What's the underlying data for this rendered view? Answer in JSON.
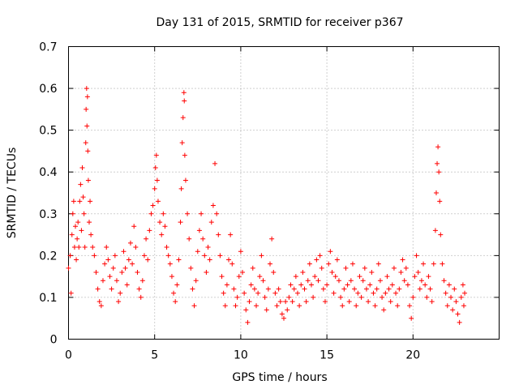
{
  "chart_data": {
    "type": "scatter",
    "title": "Day 131 of 2015, SRMTID for receiver p367",
    "xlabel": "GPS time / hours",
    "ylabel": "SRMTID / TECUs",
    "xlim": [
      0,
      25
    ],
    "ylim": [
      0,
      0.7
    ],
    "xticks": [
      0,
      5,
      10,
      15,
      20
    ],
    "yticks": [
      0,
      0.1,
      0.2,
      0.3,
      0.4,
      0.5,
      0.6,
      0.7
    ],
    "xtick_labels": [
      "0",
      "5",
      "10",
      "15",
      "20"
    ],
    "ytick_labels": [
      "0",
      "0.1",
      "0.2",
      "0.3",
      "0.4",
      "0.5",
      "0.6",
      "0.7"
    ],
    "grid": true,
    "marker": "+",
    "color": "#ff0000",
    "series": [
      {
        "name": "SRMTID",
        "points": [
          [
            0.0,
            0.17
          ],
          [
            0.1,
            0.2
          ],
          [
            0.15,
            0.11
          ],
          [
            0.2,
            0.25
          ],
          [
            0.25,
            0.3
          ],
          [
            0.3,
            0.33
          ],
          [
            0.35,
            0.22
          ],
          [
            0.4,
            0.27
          ],
          [
            0.45,
            0.19
          ],
          [
            0.5,
            0.24
          ],
          [
            0.55,
            0.28
          ],
          [
            0.6,
            0.22
          ],
          [
            0.65,
            0.33
          ],
          [
            0.7,
            0.37
          ],
          [
            0.75,
            0.26
          ],
          [
            0.8,
            0.41
          ],
          [
            0.85,
            0.34
          ],
          [
            0.9,
            0.3
          ],
          [
            0.95,
            0.22
          ],
          [
            1.0,
            0.47
          ],
          [
            1.02,
            0.55
          ],
          [
            1.05,
            0.6
          ],
          [
            1.07,
            0.51
          ],
          [
            1.1,
            0.58
          ],
          [
            1.12,
            0.45
          ],
          [
            1.15,
            0.38
          ],
          [
            1.2,
            0.28
          ],
          [
            1.25,
            0.33
          ],
          [
            1.3,
            0.25
          ],
          [
            1.4,
            0.22
          ],
          [
            1.5,
            0.2
          ],
          [
            1.6,
            0.16
          ],
          [
            1.7,
            0.12
          ],
          [
            1.8,
            0.09
          ],
          [
            1.9,
            0.08
          ],
          [
            2.0,
            0.14
          ],
          [
            2.1,
            0.18
          ],
          [
            2.2,
            0.22
          ],
          [
            2.3,
            0.19
          ],
          [
            2.4,
            0.15
          ],
          [
            2.5,
            0.12
          ],
          [
            2.6,
            0.17
          ],
          [
            2.7,
            0.2
          ],
          [
            2.8,
            0.14
          ],
          [
            2.9,
            0.09
          ],
          [
            3.0,
            0.11
          ],
          [
            3.1,
            0.16
          ],
          [
            3.2,
            0.21
          ],
          [
            3.3,
            0.17
          ],
          [
            3.4,
            0.13
          ],
          [
            3.5,
            0.19
          ],
          [
            3.6,
            0.23
          ],
          [
            3.7,
            0.18
          ],
          [
            3.8,
            0.27
          ],
          [
            3.9,
            0.22
          ],
          [
            4.0,
            0.16
          ],
          [
            4.1,
            0.12
          ],
          [
            4.2,
            0.1
          ],
          [
            4.3,
            0.14
          ],
          [
            4.4,
            0.2
          ],
          [
            4.5,
            0.24
          ],
          [
            4.6,
            0.19
          ],
          [
            4.7,
            0.26
          ],
          [
            4.8,
            0.3
          ],
          [
            4.9,
            0.32
          ],
          [
            5.0,
            0.36
          ],
          [
            5.05,
            0.41
          ],
          [
            5.1,
            0.44
          ],
          [
            5.15,
            0.38
          ],
          [
            5.2,
            0.33
          ],
          [
            5.3,
            0.28
          ],
          [
            5.4,
            0.25
          ],
          [
            5.5,
            0.3
          ],
          [
            5.6,
            0.27
          ],
          [
            5.7,
            0.22
          ],
          [
            5.8,
            0.2
          ],
          [
            5.9,
            0.18
          ],
          [
            6.0,
            0.15
          ],
          [
            6.1,
            0.11
          ],
          [
            6.2,
            0.09
          ],
          [
            6.3,
            0.13
          ],
          [
            6.4,
            0.19
          ],
          [
            6.5,
            0.28
          ],
          [
            6.55,
            0.36
          ],
          [
            6.6,
            0.47
          ],
          [
            6.65,
            0.53
          ],
          [
            6.7,
            0.59
          ],
          [
            6.72,
            0.57
          ],
          [
            6.75,
            0.44
          ],
          [
            6.8,
            0.38
          ],
          [
            6.9,
            0.3
          ],
          [
            7.0,
            0.24
          ],
          [
            7.1,
            0.17
          ],
          [
            7.2,
            0.12
          ],
          [
            7.3,
            0.08
          ],
          [
            7.4,
            0.14
          ],
          [
            7.5,
            0.21
          ],
          [
            7.6,
            0.26
          ],
          [
            7.7,
            0.3
          ],
          [
            7.8,
            0.24
          ],
          [
            7.9,
            0.2
          ],
          [
            8.0,
            0.16
          ],
          [
            8.1,
            0.22
          ],
          [
            8.2,
            0.19
          ],
          [
            8.3,
            0.28
          ],
          [
            8.4,
            0.32
          ],
          [
            8.5,
            0.42
          ],
          [
            8.6,
            0.3
          ],
          [
            8.7,
            0.25
          ],
          [
            8.8,
            0.2
          ],
          [
            8.9,
            0.15
          ],
          [
            9.0,
            0.11
          ],
          [
            9.1,
            0.08
          ],
          [
            9.2,
            0.13
          ],
          [
            9.3,
            0.19
          ],
          [
            9.4,
            0.25
          ],
          [
            9.5,
            0.18
          ],
          [
            9.6,
            0.12
          ],
          [
            9.7,
            0.08
          ],
          [
            9.8,
            0.1
          ],
          [
            9.9,
            0.15
          ],
          [
            10.0,
            0.21
          ],
          [
            10.1,
            0.16
          ],
          [
            10.2,
            0.11
          ],
          [
            10.3,
            0.07
          ],
          [
            10.4,
            0.04
          ],
          [
            10.5,
            0.09
          ],
          [
            10.6,
            0.13
          ],
          [
            10.7,
            0.17
          ],
          [
            10.8,
            0.12
          ],
          [
            10.9,
            0.08
          ],
          [
            11.0,
            0.11
          ],
          [
            11.1,
            0.15
          ],
          [
            11.2,
            0.2
          ],
          [
            11.3,
            0.14
          ],
          [
            11.4,
            0.1
          ],
          [
            11.5,
            0.07
          ],
          [
            11.6,
            0.12
          ],
          [
            11.7,
            0.18
          ],
          [
            11.8,
            0.24
          ],
          [
            11.9,
            0.16
          ],
          [
            12.0,
            0.11
          ],
          [
            12.1,
            0.08
          ],
          [
            12.2,
            0.12
          ],
          [
            12.3,
            0.09
          ],
          [
            12.4,
            0.06
          ],
          [
            12.5,
            0.05
          ],
          [
            12.6,
            0.09
          ],
          [
            12.7,
            0.07
          ],
          [
            12.8,
            0.1
          ],
          [
            12.9,
            0.13
          ],
          [
            13.0,
            0.09
          ],
          [
            13.1,
            0.12
          ],
          [
            13.2,
            0.15
          ],
          [
            13.3,
            0.11
          ],
          [
            13.4,
            0.08
          ],
          [
            13.5,
            0.13
          ],
          [
            13.6,
            0.16
          ],
          [
            13.7,
            0.12
          ],
          [
            13.8,
            0.09
          ],
          [
            13.9,
            0.14
          ],
          [
            14.0,
            0.18
          ],
          [
            14.1,
            0.13
          ],
          [
            14.2,
            0.1
          ],
          [
            14.3,
            0.15
          ],
          [
            14.4,
            0.19
          ],
          [
            14.5,
            0.14
          ],
          [
            14.6,
            0.2
          ],
          [
            14.7,
            0.17
          ],
          [
            14.8,
            0.12
          ],
          [
            14.9,
            0.09
          ],
          [
            15.0,
            0.13
          ],
          [
            15.1,
            0.18
          ],
          [
            15.2,
            0.21
          ],
          [
            15.3,
            0.16
          ],
          [
            15.4,
            0.11
          ],
          [
            15.5,
            0.15
          ],
          [
            15.6,
            0.19
          ],
          [
            15.7,
            0.14
          ],
          [
            15.8,
            0.1
          ],
          [
            15.9,
            0.08
          ],
          [
            16.0,
            0.12
          ],
          [
            16.1,
            0.17
          ],
          [
            16.2,
            0.13
          ],
          [
            16.3,
            0.09
          ],
          [
            16.4,
            0.14
          ],
          [
            16.5,
            0.18
          ],
          [
            16.6,
            0.12
          ],
          [
            16.7,
            0.08
          ],
          [
            16.8,
            0.11
          ],
          [
            16.9,
            0.15
          ],
          [
            17.0,
            0.1
          ],
          [
            17.1,
            0.14
          ],
          [
            17.2,
            0.17
          ],
          [
            17.3,
            0.12
          ],
          [
            17.4,
            0.09
          ],
          [
            17.5,
            0.13
          ],
          [
            17.6,
            0.16
          ],
          [
            17.7,
            0.11
          ],
          [
            17.8,
            0.08
          ],
          [
            17.9,
            0.12
          ],
          [
            18.0,
            0.18
          ],
          [
            18.1,
            0.14
          ],
          [
            18.2,
            0.1
          ],
          [
            18.3,
            0.07
          ],
          [
            18.4,
            0.11
          ],
          [
            18.5,
            0.15
          ],
          [
            18.6,
            0.12
          ],
          [
            18.7,
            0.09
          ],
          [
            18.8,
            0.13
          ],
          [
            18.9,
            0.17
          ],
          [
            19.0,
            0.11
          ],
          [
            19.1,
            0.08
          ],
          [
            19.2,
            0.12
          ],
          [
            19.3,
            0.16
          ],
          [
            19.4,
            0.19
          ],
          [
            19.5,
            0.14
          ],
          [
            19.6,
            0.17
          ],
          [
            19.7,
            0.13
          ],
          [
            19.8,
            0.08
          ],
          [
            19.9,
            0.05
          ],
          [
            20.0,
            0.1
          ],
          [
            20.1,
            0.15
          ],
          [
            20.2,
            0.2
          ],
          [
            20.3,
            0.16
          ],
          [
            20.4,
            0.12
          ],
          [
            20.5,
            0.14
          ],
          [
            20.6,
            0.18
          ],
          [
            20.7,
            0.13
          ],
          [
            20.8,
            0.1
          ],
          [
            20.9,
            0.15
          ],
          [
            21.0,
            0.12
          ],
          [
            21.1,
            0.09
          ],
          [
            21.2,
            0.18
          ],
          [
            21.3,
            0.26
          ],
          [
            21.35,
            0.35
          ],
          [
            21.4,
            0.42
          ],
          [
            21.45,
            0.46
          ],
          [
            21.5,
            0.4
          ],
          [
            21.55,
            0.33
          ],
          [
            21.6,
            0.25
          ],
          [
            21.7,
            0.18
          ],
          [
            21.8,
            0.14
          ],
          [
            21.9,
            0.11
          ],
          [
            22.0,
            0.08
          ],
          [
            22.1,
            0.13
          ],
          [
            22.2,
            0.1
          ],
          [
            22.3,
            0.07
          ],
          [
            22.4,
            0.12
          ],
          [
            22.5,
            0.09
          ],
          [
            22.6,
            0.06
          ],
          [
            22.7,
            0.04
          ],
          [
            22.8,
            0.1
          ],
          [
            22.9,
            0.13
          ],
          [
            22.95,
            0.08
          ],
          [
            23.0,
            0.11
          ]
        ]
      }
    ]
  }
}
